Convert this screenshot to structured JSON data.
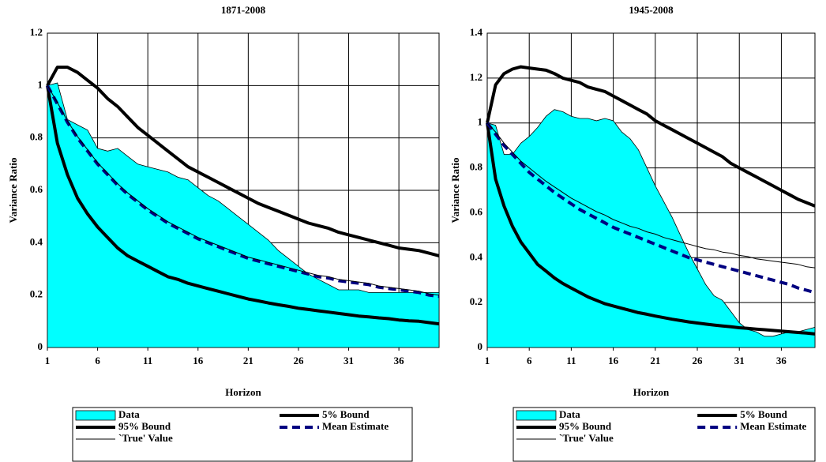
{
  "chart_data": [
    {
      "type": "line",
      "title": "1871-2008",
      "x_label": "Horizon",
      "y_label": "Variance Ratio",
      "x": [
        1,
        2,
        3,
        4,
        5,
        6,
        7,
        8,
        9,
        10,
        11,
        12,
        13,
        14,
        15,
        16,
        17,
        18,
        19,
        20,
        21,
        22,
        23,
        24,
        25,
        26,
        27,
        28,
        29,
        30,
        31,
        32,
        33,
        34,
        35,
        36,
        37,
        38,
        39,
        40
      ],
      "xlim": [
        1,
        40
      ],
      "xticks": [
        1,
        6,
        11,
        16,
        21,
        26,
        31,
        36
      ],
      "ylim": [
        0,
        1.2
      ],
      "yticks": [
        0,
        0.2,
        0.4,
        0.6,
        0.8,
        1,
        1.2
      ],
      "grid": true,
      "series": [
        {
          "name": "Data",
          "type": "area",
          "color": "#00ffff",
          "values": [
            1.0,
            1.01,
            0.87,
            0.85,
            0.83,
            0.76,
            0.75,
            0.76,
            0.73,
            0.7,
            0.69,
            0.68,
            0.67,
            0.65,
            0.64,
            0.61,
            0.58,
            0.56,
            0.53,
            0.5,
            0.47,
            0.44,
            0.41,
            0.37,
            0.34,
            0.31,
            0.28,
            0.26,
            0.24,
            0.22,
            0.22,
            0.22,
            0.21,
            0.21,
            0.21,
            0.21,
            0.21,
            0.21,
            0.21,
            0.21
          ]
        },
        {
          "name": "5% Bound",
          "type": "line",
          "color": "#000000",
          "width": 4,
          "values": [
            1.0,
            0.78,
            0.66,
            0.57,
            0.51,
            0.46,
            0.42,
            0.38,
            0.35,
            0.33,
            0.31,
            0.29,
            0.27,
            0.26,
            0.245,
            0.235,
            0.225,
            0.215,
            0.205,
            0.195,
            0.185,
            0.178,
            0.17,
            0.163,
            0.157,
            0.15,
            0.145,
            0.14,
            0.135,
            0.13,
            0.125,
            0.12,
            0.117,
            0.113,
            0.11,
            0.105,
            0.102,
            0.1,
            0.095,
            0.09
          ]
        },
        {
          "name": "95% Bound",
          "type": "line",
          "color": "#000000",
          "width": 4,
          "values": [
            1.0,
            1.07,
            1.07,
            1.05,
            1.02,
            0.99,
            0.95,
            0.92,
            0.88,
            0.84,
            0.81,
            0.78,
            0.75,
            0.72,
            0.69,
            0.67,
            0.65,
            0.63,
            0.61,
            0.59,
            0.57,
            0.55,
            0.535,
            0.52,
            0.505,
            0.49,
            0.475,
            0.465,
            0.455,
            0.44,
            0.43,
            0.42,
            0.41,
            0.4,
            0.39,
            0.38,
            0.375,
            0.37,
            0.36,
            0.35
          ]
        },
        {
          "name": "Mean Estimate",
          "type": "line",
          "color": "#000080",
          "width": 4,
          "dash": true,
          "values": [
            1.0,
            0.93,
            0.86,
            0.8,
            0.75,
            0.7,
            0.66,
            0.62,
            0.585,
            0.555,
            0.525,
            0.5,
            0.475,
            0.455,
            0.435,
            0.415,
            0.4,
            0.385,
            0.37,
            0.355,
            0.34,
            0.33,
            0.32,
            0.31,
            0.3,
            0.29,
            0.28,
            0.27,
            0.265,
            0.255,
            0.25,
            0.245,
            0.24,
            0.23,
            0.225,
            0.22,
            0.215,
            0.21,
            0.2,
            0.195
          ]
        },
        {
          "name": "`True' Value",
          "type": "line",
          "color": "#000000",
          "width": 1,
          "values": [
            1.0,
            0.935,
            0.865,
            0.805,
            0.755,
            0.705,
            0.665,
            0.625,
            0.59,
            0.56,
            0.53,
            0.505,
            0.48,
            0.46,
            0.44,
            0.42,
            0.405,
            0.39,
            0.375,
            0.36,
            0.345,
            0.335,
            0.325,
            0.315,
            0.305,
            0.295,
            0.285,
            0.275,
            0.27,
            0.26,
            0.255,
            0.25,
            0.245,
            0.235,
            0.23,
            0.225,
            0.22,
            0.215,
            0.205,
            0.2
          ]
        }
      ]
    },
    {
      "type": "line",
      "title": "1945-2008",
      "x_label": "Horizon",
      "y_label": "Variance Ratio",
      "x": [
        1,
        2,
        3,
        4,
        5,
        6,
        7,
        8,
        9,
        10,
        11,
        12,
        13,
        14,
        15,
        16,
        17,
        18,
        19,
        20,
        21,
        22,
        23,
        24,
        25,
        26,
        27,
        28,
        29,
        30,
        31,
        32,
        33,
        34,
        35,
        36,
        37,
        38,
        39,
        40
      ],
      "xlim": [
        1,
        40
      ],
      "xticks": [
        1,
        6,
        11,
        16,
        21,
        26,
        31,
        36
      ],
      "ylim": [
        0,
        1.4
      ],
      "yticks": [
        0,
        0.2,
        0.4,
        0.6,
        0.8,
        1,
        1.2,
        1.4
      ],
      "grid": true,
      "series": [
        {
          "name": "Data",
          "type": "area",
          "color": "#00ffff",
          "values": [
            1.0,
            0.99,
            0.86,
            0.86,
            0.91,
            0.94,
            0.98,
            1.03,
            1.06,
            1.05,
            1.03,
            1.02,
            1.02,
            1.01,
            1.02,
            1.01,
            0.96,
            0.93,
            0.88,
            0.8,
            0.72,
            0.65,
            0.58,
            0.5,
            0.42,
            0.35,
            0.28,
            0.23,
            0.21,
            0.16,
            0.11,
            0.08,
            0.07,
            0.05,
            0.05,
            0.06,
            0.07,
            0.07,
            0.08,
            0.09
          ]
        },
        {
          "name": "5% Bound",
          "type": "line",
          "color": "#000000",
          "width": 4,
          "values": [
            1.0,
            0.75,
            0.63,
            0.54,
            0.47,
            0.42,
            0.37,
            0.34,
            0.31,
            0.285,
            0.265,
            0.245,
            0.225,
            0.21,
            0.195,
            0.185,
            0.175,
            0.165,
            0.155,
            0.148,
            0.14,
            0.133,
            0.126,
            0.12,
            0.114,
            0.109,
            0.104,
            0.1,
            0.096,
            0.092,
            0.088,
            0.085,
            0.082,
            0.079,
            0.076,
            0.073,
            0.07,
            0.067,
            0.064,
            0.06
          ]
        },
        {
          "name": "95% Bound",
          "type": "line",
          "color": "#000000",
          "width": 4,
          "values": [
            1.0,
            1.17,
            1.22,
            1.24,
            1.25,
            1.245,
            1.24,
            1.235,
            1.22,
            1.2,
            1.19,
            1.18,
            1.16,
            1.15,
            1.14,
            1.12,
            1.1,
            1.08,
            1.06,
            1.04,
            1.01,
            0.99,
            0.97,
            0.95,
            0.93,
            0.91,
            0.89,
            0.87,
            0.85,
            0.82,
            0.8,
            0.78,
            0.76,
            0.74,
            0.72,
            0.7,
            0.68,
            0.66,
            0.645,
            0.63
          ]
        },
        {
          "name": "Mean Estimate",
          "type": "line",
          "color": "#000080",
          "width": 4,
          "dash": true,
          "values": [
            1.0,
            0.95,
            0.9,
            0.86,
            0.82,
            0.78,
            0.75,
            0.72,
            0.69,
            0.665,
            0.64,
            0.615,
            0.595,
            0.575,
            0.555,
            0.535,
            0.52,
            0.505,
            0.49,
            0.475,
            0.46,
            0.445,
            0.43,
            0.415,
            0.4,
            0.39,
            0.38,
            0.37,
            0.36,
            0.35,
            0.34,
            0.33,
            0.32,
            0.31,
            0.3,
            0.29,
            0.28,
            0.265,
            0.255,
            0.245
          ]
        },
        {
          "name": "`True' Value",
          "type": "line",
          "color": "#000000",
          "width": 1,
          "values": [
            1.0,
            0.96,
            0.91,
            0.87,
            0.83,
            0.8,
            0.77,
            0.74,
            0.715,
            0.69,
            0.665,
            0.645,
            0.625,
            0.605,
            0.59,
            0.57,
            0.555,
            0.54,
            0.53,
            0.515,
            0.505,
            0.49,
            0.48,
            0.47,
            0.46,
            0.45,
            0.44,
            0.435,
            0.425,
            0.42,
            0.41,
            0.405,
            0.395,
            0.39,
            0.385,
            0.38,
            0.375,
            0.37,
            0.36,
            0.355
          ]
        }
      ]
    }
  ]
}
